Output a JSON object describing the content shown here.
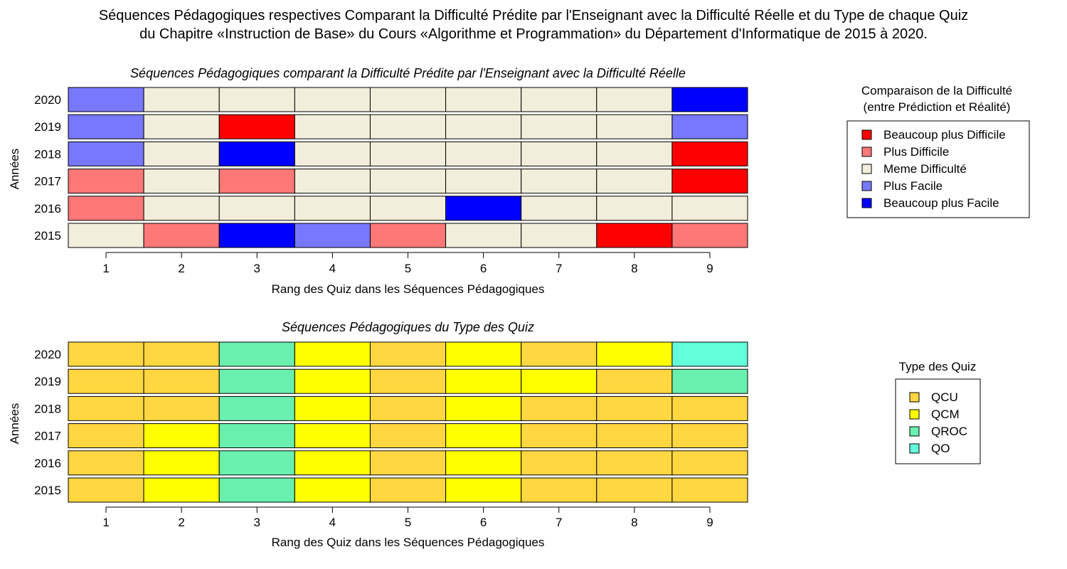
{
  "title_line1": "Séquences Pédagogiques respectives Comparant la Difficulté Prédite par l'Enseignant avec la Difficulté Réelle et du Type de chaque Quiz",
  "title_line2": "du Chapitre «Instruction de Base» du Cours «Algorithme et Programmation» du Département d'Informatique de 2015 à 2020.",
  "chart_data": [
    {
      "type": "heatmap",
      "title": "Séquences Pédagogiques comparant la Difficulté Prédite par l'Enseignant avec la Difficulté Réelle",
      "xlabel": "Rang des Quiz dans les Séquences Pédagogiques",
      "ylabel": "Années",
      "x": [
        1,
        2,
        3,
        4,
        5,
        6,
        7,
        8,
        9
      ],
      "y": [
        "2020",
        "2019",
        "2018",
        "2017",
        "2016",
        "2015"
      ],
      "legend": {
        "title_line1": "Comparaison de la Difficulté",
        "title_line2": "(entre Prédiction et Réalité)",
        "position": "right",
        "entries": [
          {
            "label": "Beaucoup plus Difficile",
            "color": "#ff0000"
          },
          {
            "label": "Plus Difficile",
            "color": "#ff7878"
          },
          {
            "label": "Meme Difficulté",
            "color": "#f2eedb"
          },
          {
            "label": "Plus Facile",
            "color": "#7878ff"
          },
          {
            "label": "Beaucoup plus Facile",
            "color": "#0000ff"
          }
        ]
      },
      "values": [
        [
          "Plus Facile",
          "Meme Difficulté",
          "Meme Difficulté",
          "Meme Difficulté",
          "Meme Difficulté",
          "Meme Difficulté",
          "Meme Difficulté",
          "Meme Difficulté",
          "Beaucoup plus Facile"
        ],
        [
          "Plus Facile",
          "Meme Difficulté",
          "Beaucoup plus Difficile",
          "Meme Difficulté",
          "Meme Difficulté",
          "Meme Difficulté",
          "Meme Difficulté",
          "Meme Difficulté",
          "Plus Facile"
        ],
        [
          "Plus Facile",
          "Meme Difficulté",
          "Beaucoup plus Facile",
          "Meme Difficulté",
          "Meme Difficulté",
          "Meme Difficulté",
          "Meme Difficulté",
          "Meme Difficulté",
          "Beaucoup plus Difficile"
        ],
        [
          "Plus Difficile",
          "Meme Difficulté",
          "Plus Difficile",
          "Meme Difficulté",
          "Meme Difficulté",
          "Meme Difficulté",
          "Meme Difficulté",
          "Meme Difficulté",
          "Beaucoup plus Difficile"
        ],
        [
          "Plus Difficile",
          "Meme Difficulté",
          "Meme Difficulté",
          "Meme Difficulté",
          "Meme Difficulté",
          "Beaucoup plus Facile",
          "Meme Difficulté",
          "Meme Difficulté",
          "Meme Difficulté"
        ],
        [
          "Meme Difficulté",
          "Plus Difficile",
          "Beaucoup plus Facile",
          "Plus Facile",
          "Plus Difficile",
          "Meme Difficulté",
          "Meme Difficulté",
          "Beaucoup plus Difficile",
          "Plus Difficile"
        ]
      ]
    },
    {
      "type": "heatmap",
      "title": "Séquences Pédagogiques du Type des Quiz",
      "xlabel": "Rang des Quiz dans les Séquences Pédagogiques",
      "ylabel": "Années",
      "x": [
        1,
        2,
        3,
        4,
        5,
        6,
        7,
        8,
        9
      ],
      "y": [
        "2020",
        "2019",
        "2018",
        "2017",
        "2016",
        "2015"
      ],
      "legend": {
        "title_line1": "Type des Quiz",
        "title_line2": "",
        "position": "right",
        "entries": [
          {
            "label": "QCU",
            "color": "#ffd740"
          },
          {
            "label": "QCM",
            "color": "#ffff00"
          },
          {
            "label": "QROC",
            "color": "#69f0ae"
          },
          {
            "label": "QO",
            "color": "#64ffda"
          }
        ]
      },
      "values": [
        [
          "QCU",
          "QCU",
          "QROC",
          "QCM",
          "QCU",
          "QCM",
          "QCU",
          "QCM",
          "QO"
        ],
        [
          "QCU",
          "QCU",
          "QROC",
          "QCM",
          "QCU",
          "QCM",
          "QCM",
          "QCU",
          "QROC"
        ],
        [
          "QCU",
          "QCU",
          "QROC",
          "QCM",
          "QCU",
          "QCM",
          "QCU",
          "QCU",
          "QCU"
        ],
        [
          "QCU",
          "QCM",
          "QROC",
          "QCM",
          "QCU",
          "QCM",
          "QCU",
          "QCU",
          "QCU"
        ],
        [
          "QCU",
          "QCM",
          "QROC",
          "QCM",
          "QCU",
          "QCM",
          "QCU",
          "QCU",
          "QCU"
        ],
        [
          "QCU",
          "QCM",
          "QROC",
          "QCM",
          "QCU",
          "QCM",
          "QCU",
          "QCU",
          "QCU"
        ]
      ]
    }
  ]
}
